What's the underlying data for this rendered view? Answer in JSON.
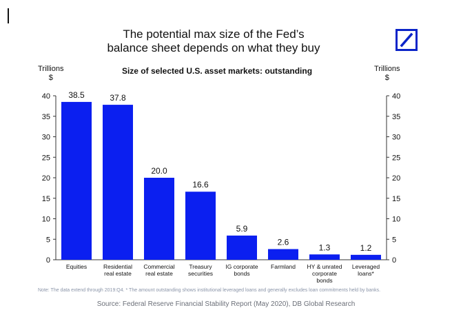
{
  "title_lines": [
    "The potential max size of the Fed’s",
    "balance sheet depends on what they buy"
  ],
  "subtitle": "Size of selected U.S. asset markets: outstanding",
  "unit_left": [
    "Trillions",
    "$"
  ],
  "unit_right": [
    "Trillions",
    "$"
  ],
  "note": "Note: The data extend through 2019:Q4. * The amount outstanding shows institutional leveraged loans and generally excludes loan commitments held by banks.",
  "source": "Source: Federal Reserve Financial Stability Report (May 2020), DB Global Research",
  "colors": {
    "bar": "#0b1ff0",
    "logo": "#0b24c8",
    "axis": "#333333"
  },
  "logo_icon": "deutsche-bank-logo",
  "chart_data": {
    "type": "bar",
    "title": "Size of selected U.S. asset markets: outstanding",
    "ylabel": "Trillions $",
    "ylim": [
      0,
      40
    ],
    "yticks": [
      0,
      5,
      10,
      15,
      20,
      25,
      30,
      35,
      40
    ],
    "dual_y_axis": true,
    "grid": false,
    "categories": [
      [
        "Equities"
      ],
      [
        "Residential",
        "real estate"
      ],
      [
        "Commercial",
        "real estate"
      ],
      [
        "Treasury",
        "securities"
      ],
      [
        "IG corporate",
        "bonds"
      ],
      [
        "Farmland"
      ],
      [
        "HY & unrated",
        "corporate",
        "bonds"
      ],
      [
        "Leveraged",
        "loans*"
      ]
    ],
    "values": [
      38.5,
      37.8,
      20.0,
      16.6,
      5.9,
      2.6,
      1.3,
      1.2
    ],
    "value_labels": [
      "38.5",
      "37.8",
      "20.0",
      "16.6",
      "5.9",
      "2.6",
      "1.3",
      "1.2"
    ]
  }
}
